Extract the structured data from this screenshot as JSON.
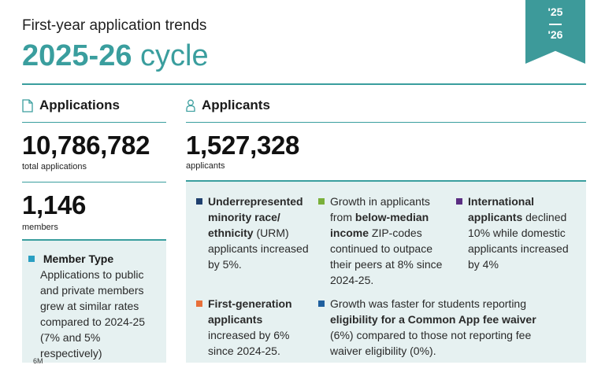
{
  "header": {
    "subtitle": "First-year application trends",
    "cycle_year": "2025-26",
    "cycle_word": "cycle",
    "ribbon_top": "'25",
    "ribbon_bottom": "'26"
  },
  "applications": {
    "heading": "Applications",
    "icon": "document-icon",
    "total_value": "10,786,782",
    "total_label": "total applications",
    "members_value": "1,146",
    "members_label": "members",
    "member_type": {
      "title": "Member Type",
      "text": "Applications to public and private members grew at similar rates compared to 2024-25 (7% and 5% respectively)",
      "color": "#2a9fc2"
    },
    "axis_fragment": "6M"
  },
  "applicants": {
    "heading": "Applicants",
    "icon": "person-icon",
    "total_value": "1,527,328",
    "total_label": "applicants",
    "urm": {
      "bold": "Underrepresented minority race/ ethnicity",
      "rest": " (URM) applicants increased by 5%.",
      "color": "#1f3f6e"
    },
    "income": {
      "pre": "Growth in applicants from ",
      "bold": "below-median income",
      "rest": " ZIP-codes continued to outpace their peers at 8% since 2024-25.",
      "color": "#7ab03a"
    },
    "international": {
      "bold": "International applicants",
      "rest": " declined 10% while domestic applicants increased by 4%",
      "color": "#5a2d82"
    },
    "first_gen": {
      "bold": "First-generation applicants",
      "rest": " increased by 6% since 2024-25.",
      "color": "#e8703a"
    },
    "fee_waiver": {
      "pre": "Growth was faster for students reporting ",
      "bold": "eligibility for a Common App fee waiver",
      "rest": " (6%) compared to those not reporting fee waiver eligibility (0%).",
      "color": "#1f5f9e"
    }
  }
}
